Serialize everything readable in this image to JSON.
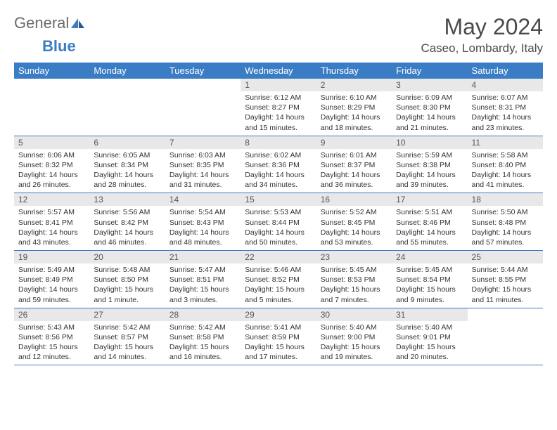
{
  "logo": {
    "text1": "General",
    "text2": "Blue"
  },
  "title": "May 2024",
  "location": "Caseo, Lombardy, Italy",
  "weekdays": [
    "Sunday",
    "Monday",
    "Tuesday",
    "Wednesday",
    "Thursday",
    "Friday",
    "Saturday"
  ],
  "colors": {
    "header_bg": "#3b7dc4",
    "daynum_bg": "#e8e8e8"
  },
  "weeks": [
    [
      null,
      null,
      null,
      {
        "n": "1",
        "sr": "6:12 AM",
        "ss": "8:27 PM",
        "dl": "14 hours and 15 minutes."
      },
      {
        "n": "2",
        "sr": "6:10 AM",
        "ss": "8:29 PM",
        "dl": "14 hours and 18 minutes."
      },
      {
        "n": "3",
        "sr": "6:09 AM",
        "ss": "8:30 PM",
        "dl": "14 hours and 21 minutes."
      },
      {
        "n": "4",
        "sr": "6:07 AM",
        "ss": "8:31 PM",
        "dl": "14 hours and 23 minutes."
      }
    ],
    [
      {
        "n": "5",
        "sr": "6:06 AM",
        "ss": "8:32 PM",
        "dl": "14 hours and 26 minutes."
      },
      {
        "n": "6",
        "sr": "6:05 AM",
        "ss": "8:34 PM",
        "dl": "14 hours and 28 minutes."
      },
      {
        "n": "7",
        "sr": "6:03 AM",
        "ss": "8:35 PM",
        "dl": "14 hours and 31 minutes."
      },
      {
        "n": "8",
        "sr": "6:02 AM",
        "ss": "8:36 PM",
        "dl": "14 hours and 34 minutes."
      },
      {
        "n": "9",
        "sr": "6:01 AM",
        "ss": "8:37 PM",
        "dl": "14 hours and 36 minutes."
      },
      {
        "n": "10",
        "sr": "5:59 AM",
        "ss": "8:38 PM",
        "dl": "14 hours and 39 minutes."
      },
      {
        "n": "11",
        "sr": "5:58 AM",
        "ss": "8:40 PM",
        "dl": "14 hours and 41 minutes."
      }
    ],
    [
      {
        "n": "12",
        "sr": "5:57 AM",
        "ss": "8:41 PM",
        "dl": "14 hours and 43 minutes."
      },
      {
        "n": "13",
        "sr": "5:56 AM",
        "ss": "8:42 PM",
        "dl": "14 hours and 46 minutes."
      },
      {
        "n": "14",
        "sr": "5:54 AM",
        "ss": "8:43 PM",
        "dl": "14 hours and 48 minutes."
      },
      {
        "n": "15",
        "sr": "5:53 AM",
        "ss": "8:44 PM",
        "dl": "14 hours and 50 minutes."
      },
      {
        "n": "16",
        "sr": "5:52 AM",
        "ss": "8:45 PM",
        "dl": "14 hours and 53 minutes."
      },
      {
        "n": "17",
        "sr": "5:51 AM",
        "ss": "8:46 PM",
        "dl": "14 hours and 55 minutes."
      },
      {
        "n": "18",
        "sr": "5:50 AM",
        "ss": "8:48 PM",
        "dl": "14 hours and 57 minutes."
      }
    ],
    [
      {
        "n": "19",
        "sr": "5:49 AM",
        "ss": "8:49 PM",
        "dl": "14 hours and 59 minutes."
      },
      {
        "n": "20",
        "sr": "5:48 AM",
        "ss": "8:50 PM",
        "dl": "15 hours and 1 minute."
      },
      {
        "n": "21",
        "sr": "5:47 AM",
        "ss": "8:51 PM",
        "dl": "15 hours and 3 minutes."
      },
      {
        "n": "22",
        "sr": "5:46 AM",
        "ss": "8:52 PM",
        "dl": "15 hours and 5 minutes."
      },
      {
        "n": "23",
        "sr": "5:45 AM",
        "ss": "8:53 PM",
        "dl": "15 hours and 7 minutes."
      },
      {
        "n": "24",
        "sr": "5:45 AM",
        "ss": "8:54 PM",
        "dl": "15 hours and 9 minutes."
      },
      {
        "n": "25",
        "sr": "5:44 AM",
        "ss": "8:55 PM",
        "dl": "15 hours and 11 minutes."
      }
    ],
    [
      {
        "n": "26",
        "sr": "5:43 AM",
        "ss": "8:56 PM",
        "dl": "15 hours and 12 minutes."
      },
      {
        "n": "27",
        "sr": "5:42 AM",
        "ss": "8:57 PM",
        "dl": "15 hours and 14 minutes."
      },
      {
        "n": "28",
        "sr": "5:42 AM",
        "ss": "8:58 PM",
        "dl": "15 hours and 16 minutes."
      },
      {
        "n": "29",
        "sr": "5:41 AM",
        "ss": "8:59 PM",
        "dl": "15 hours and 17 minutes."
      },
      {
        "n": "30",
        "sr": "5:40 AM",
        "ss": "9:00 PM",
        "dl": "15 hours and 19 minutes."
      },
      {
        "n": "31",
        "sr": "5:40 AM",
        "ss": "9:01 PM",
        "dl": "15 hours and 20 minutes."
      },
      null
    ]
  ]
}
